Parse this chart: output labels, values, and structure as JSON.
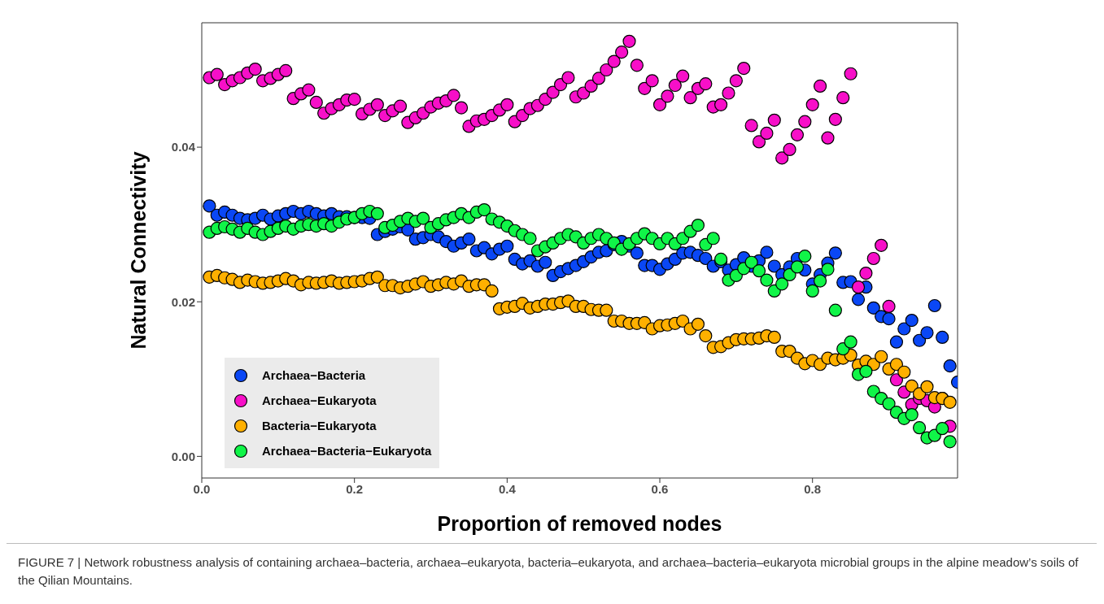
{
  "chart_data": {
    "type": "scatter",
    "xlabel": "Proportion of removed nodes",
    "ylabel": "Natural Connectivity",
    "x": [
      0.01,
      0.02,
      0.03,
      0.04,
      0.05,
      0.06,
      0.07,
      0.08,
      0.09,
      0.1,
      0.11,
      0.12,
      0.13,
      0.14,
      0.15,
      0.16,
      0.17,
      0.18,
      0.19,
      0.2,
      0.21,
      0.22,
      0.23,
      0.24,
      0.25,
      0.26,
      0.27,
      0.28,
      0.29,
      0.3,
      0.31,
      0.32,
      0.33,
      0.34,
      0.35,
      0.36,
      0.37,
      0.38,
      0.39,
      0.4,
      0.41,
      0.42,
      0.43,
      0.44,
      0.45,
      0.46,
      0.47,
      0.48,
      0.49,
      0.5,
      0.51,
      0.52,
      0.53,
      0.54,
      0.55,
      0.56,
      0.57,
      0.58,
      0.59,
      0.6,
      0.61,
      0.62,
      0.63,
      0.64,
      0.65,
      0.66,
      0.67,
      0.68,
      0.69,
      0.7,
      0.71,
      0.72,
      0.73,
      0.74,
      0.75,
      0.76,
      0.77,
      0.78,
      0.79,
      0.8,
      0.81,
      0.82,
      0.83,
      0.84,
      0.85,
      0.86,
      0.87,
      0.88,
      0.89,
      0.9,
      0.91,
      0.92,
      0.93,
      0.94,
      0.95,
      0.96,
      0.97,
      0.98
    ],
    "series": [
      {
        "name": "Archaea−Bacteria",
        "color": "#0a47f5",
        "x": [
          0.01,
          0.02,
          0.03,
          0.04,
          0.05,
          0.06,
          0.07,
          0.08,
          0.09,
          0.1,
          0.11,
          0.12,
          0.13,
          0.14,
          0.15,
          0.16,
          0.17,
          0.18,
          0.19,
          0.2,
          0.21,
          0.22,
          0.23,
          0.24,
          0.25,
          0.26,
          0.27,
          0.28,
          0.29,
          0.3,
          0.31,
          0.32,
          0.33,
          0.34,
          0.35,
          0.36,
          0.37,
          0.38,
          0.39,
          0.4,
          0.41,
          0.42,
          0.43,
          0.44,
          0.45,
          0.46,
          0.47,
          0.48,
          0.49,
          0.5,
          0.51,
          0.52,
          0.53,
          0.54,
          0.55,
          0.56,
          0.57,
          0.58,
          0.59,
          0.6,
          0.61,
          0.62,
          0.63,
          0.64,
          0.65,
          0.66,
          0.67,
          0.68,
          0.69,
          0.7,
          0.71,
          0.72,
          0.73,
          0.74,
          0.75,
          0.76,
          0.77,
          0.78,
          0.79,
          0.8,
          0.81,
          0.82,
          0.83,
          0.84,
          0.85,
          0.86,
          0.87,
          0.88,
          0.89,
          0.9,
          0.91,
          0.92,
          0.93,
          0.94,
          0.95,
          0.96,
          0.97,
          0.98,
          0.99
        ],
        "values": [
          0.0324,
          0.0312,
          0.0316,
          0.0312,
          0.0308,
          0.0306,
          0.0308,
          0.0312,
          0.0307,
          0.0311,
          0.0314,
          0.0317,
          0.0314,
          0.0317,
          0.0314,
          0.0311,
          0.0314,
          0.031,
          0.031,
          0.0309,
          0.0309,
          0.0308,
          0.0287,
          0.0291,
          0.0294,
          0.0297,
          0.0293,
          0.0281,
          0.0283,
          0.0287,
          0.0284,
          0.0278,
          0.0272,
          0.0276,
          0.0281,
          0.0266,
          0.027,
          0.0262,
          0.0268,
          0.0272,
          0.0255,
          0.0249,
          0.0253,
          0.0246,
          0.0251,
          0.0234,
          0.0239,
          0.0243,
          0.0247,
          0.0252,
          0.0258,
          0.0264,
          0.0266,
          0.0274,
          0.0278,
          0.0272,
          0.0263,
          0.0247,
          0.0247,
          0.0242,
          0.0249,
          0.0255,
          0.0263,
          0.0264,
          0.026,
          0.0256,
          0.0246,
          0.0252,
          0.0241,
          0.0248,
          0.0257,
          0.0246,
          0.0253,
          0.0264,
          0.0246,
          0.0235,
          0.0245,
          0.0256,
          0.0241,
          0.0223,
          0.0235,
          0.025,
          0.0263,
          0.0225,
          0.0226,
          0.0203,
          0.0219,
          0.0192,
          0.0181,
          0.0178,
          0.0148,
          0.0165,
          0.0176,
          0.015,
          0.016,
          0.0195,
          0.0154,
          0.0117,
          0.0096
        ]
      },
      {
        "name": "Archaea−Eukaryota",
        "color": "#f70fc8",
        "values": [
          0.049,
          0.0494,
          0.0481,
          0.0486,
          0.049,
          0.0496,
          0.0501,
          0.0486,
          0.0489,
          0.0494,
          0.0499,
          0.0463,
          0.0469,
          0.0474,
          0.0458,
          0.0444,
          0.045,
          0.0455,
          0.0461,
          0.0462,
          0.0443,
          0.0449,
          0.0455,
          0.0441,
          0.0447,
          0.0453,
          0.0432,
          0.0438,
          0.0444,
          0.0452,
          0.0457,
          0.046,
          0.0467,
          0.0451,
          0.0427,
          0.0434,
          0.0436,
          0.0441,
          0.0448,
          0.0455,
          0.0433,
          0.0441,
          0.045,
          0.0454,
          0.0462,
          0.0471,
          0.0481,
          0.049,
          0.0465,
          0.047,
          0.0479,
          0.0489,
          0.05,
          0.0511,
          0.0523,
          0.0537,
          0.0506,
          0.0476,
          0.0486,
          0.0455,
          0.0466,
          0.048,
          0.0492,
          0.0464,
          0.0476,
          0.0482,
          0.0452,
          0.0455,
          0.047,
          0.0486,
          0.0502,
          0.0428,
          0.0407,
          0.0418,
          0.0435,
          0.0386,
          0.0397,
          0.0416,
          0.0433,
          0.0455,
          0.0479,
          0.0412,
          0.0436,
          0.0464,
          0.0495,
          0.0219,
          0.0237,
          0.0256,
          0.0273,
          0.0194,
          0.0099,
          0.0083,
          0.0067,
          0.0075,
          0.0072,
          0.0064,
          0.0075,
          0.0039
        ]
      },
      {
        "name": "Bacteria−Eukaryota",
        "color": "#ffb000",
        "values": [
          0.0232,
          0.0234,
          0.0231,
          0.0229,
          0.0225,
          0.0228,
          0.0226,
          0.0224,
          0.0225,
          0.0227,
          0.023,
          0.0227,
          0.0222,
          0.0225,
          0.0224,
          0.0225,
          0.0227,
          0.0224,
          0.0225,
          0.0226,
          0.0227,
          0.023,
          0.0232,
          0.0221,
          0.0221,
          0.0218,
          0.022,
          0.0223,
          0.0226,
          0.022,
          0.0222,
          0.0225,
          0.0223,
          0.0227,
          0.022,
          0.0222,
          0.0222,
          0.0214,
          0.0191,
          0.0193,
          0.0194,
          0.0198,
          0.0192,
          0.0194,
          0.0197,
          0.0197,
          0.0199,
          0.0201,
          0.0194,
          0.0194,
          0.019,
          0.0189,
          0.0189,
          0.0175,
          0.0175,
          0.0172,
          0.0172,
          0.0173,
          0.0165,
          0.0169,
          0.017,
          0.0172,
          0.0175,
          0.0165,
          0.0171,
          0.0156,
          0.0141,
          0.0142,
          0.0147,
          0.0151,
          0.0152,
          0.0152,
          0.0153,
          0.0156,
          0.0154,
          0.0136,
          0.0136,
          0.0127,
          0.012,
          0.0124,
          0.0119,
          0.0127,
          0.0125,
          0.0127,
          0.0131,
          0.0118,
          0.0123,
          0.0119,
          0.0129,
          0.0113,
          0.0119,
          0.0109,
          0.0091,
          0.0081,
          0.009,
          0.0076,
          0.0075,
          0.007
        ]
      },
      {
        "name": "Archaea−Bacteria−Eukaryota",
        "color": "#10f548",
        "values": [
          0.029,
          0.0295,
          0.0297,
          0.0294,
          0.029,
          0.0295,
          0.029,
          0.0287,
          0.0291,
          0.0295,
          0.0298,
          0.0294,
          0.0298,
          0.03,
          0.0298,
          0.0301,
          0.0298,
          0.0303,
          0.0307,
          0.0309,
          0.0314,
          0.0317,
          0.0314,
          0.0296,
          0.0299,
          0.0304,
          0.0308,
          0.0304,
          0.0308,
          0.0296,
          0.0301,
          0.0306,
          0.0309,
          0.0314,
          0.0309,
          0.0316,
          0.0319,
          0.0307,
          0.0303,
          0.0298,
          0.0292,
          0.0287,
          0.0282,
          0.0266,
          0.0271,
          0.0276,
          0.0282,
          0.0287,
          0.0284,
          0.0276,
          0.0282,
          0.0287,
          0.0282,
          0.0276,
          0.0268,
          0.0275,
          0.0282,
          0.0288,
          0.0282,
          0.0275,
          0.0282,
          0.0275,
          0.0282,
          0.0291,
          0.0299,
          0.0274,
          0.0282,
          0.0255,
          0.0228,
          0.0234,
          0.0243,
          0.0251,
          0.024,
          0.0228,
          0.0214,
          0.0223,
          0.0235,
          0.0245,
          0.0259,
          0.0214,
          0.0227,
          0.0242,
          0.0189,
          0.0139,
          0.0148,
          0.0106,
          0.011,
          0.0084,
          0.0075,
          0.0068,
          0.0057,
          0.0049,
          0.0054,
          0.0037,
          0.0024,
          0.0027,
          0.0036,
          0.0019
        ]
      }
    ],
    "xlim": [
      0,
      0.99
    ],
    "ylim": [
      -0.0028,
      0.0561
    ],
    "xticks": [
      {
        "value": 0,
        "label": "0.0"
      },
      {
        "value": 0.2,
        "label": "0.2"
      },
      {
        "value": 0.4,
        "label": "0.4"
      },
      {
        "value": 0.6,
        "label": "0.6"
      },
      {
        "value": 0.8,
        "label": "0.8"
      }
    ],
    "yticks": [
      {
        "value": 0,
        "label": "0.00"
      },
      0.02,
      0.04
    ],
    "legend": "bottom left",
    "marker": "circle",
    "annotations": [
      "FIGURE 7 | Network robustness analysis of containing archaea–bacteria, archaea–eukaryota, bacteria–eukaryota, and archaea–bacteria–eukaryota microbial groups in the alpine meadow’s soils of the Qilian Mountains."
    ]
  }
}
